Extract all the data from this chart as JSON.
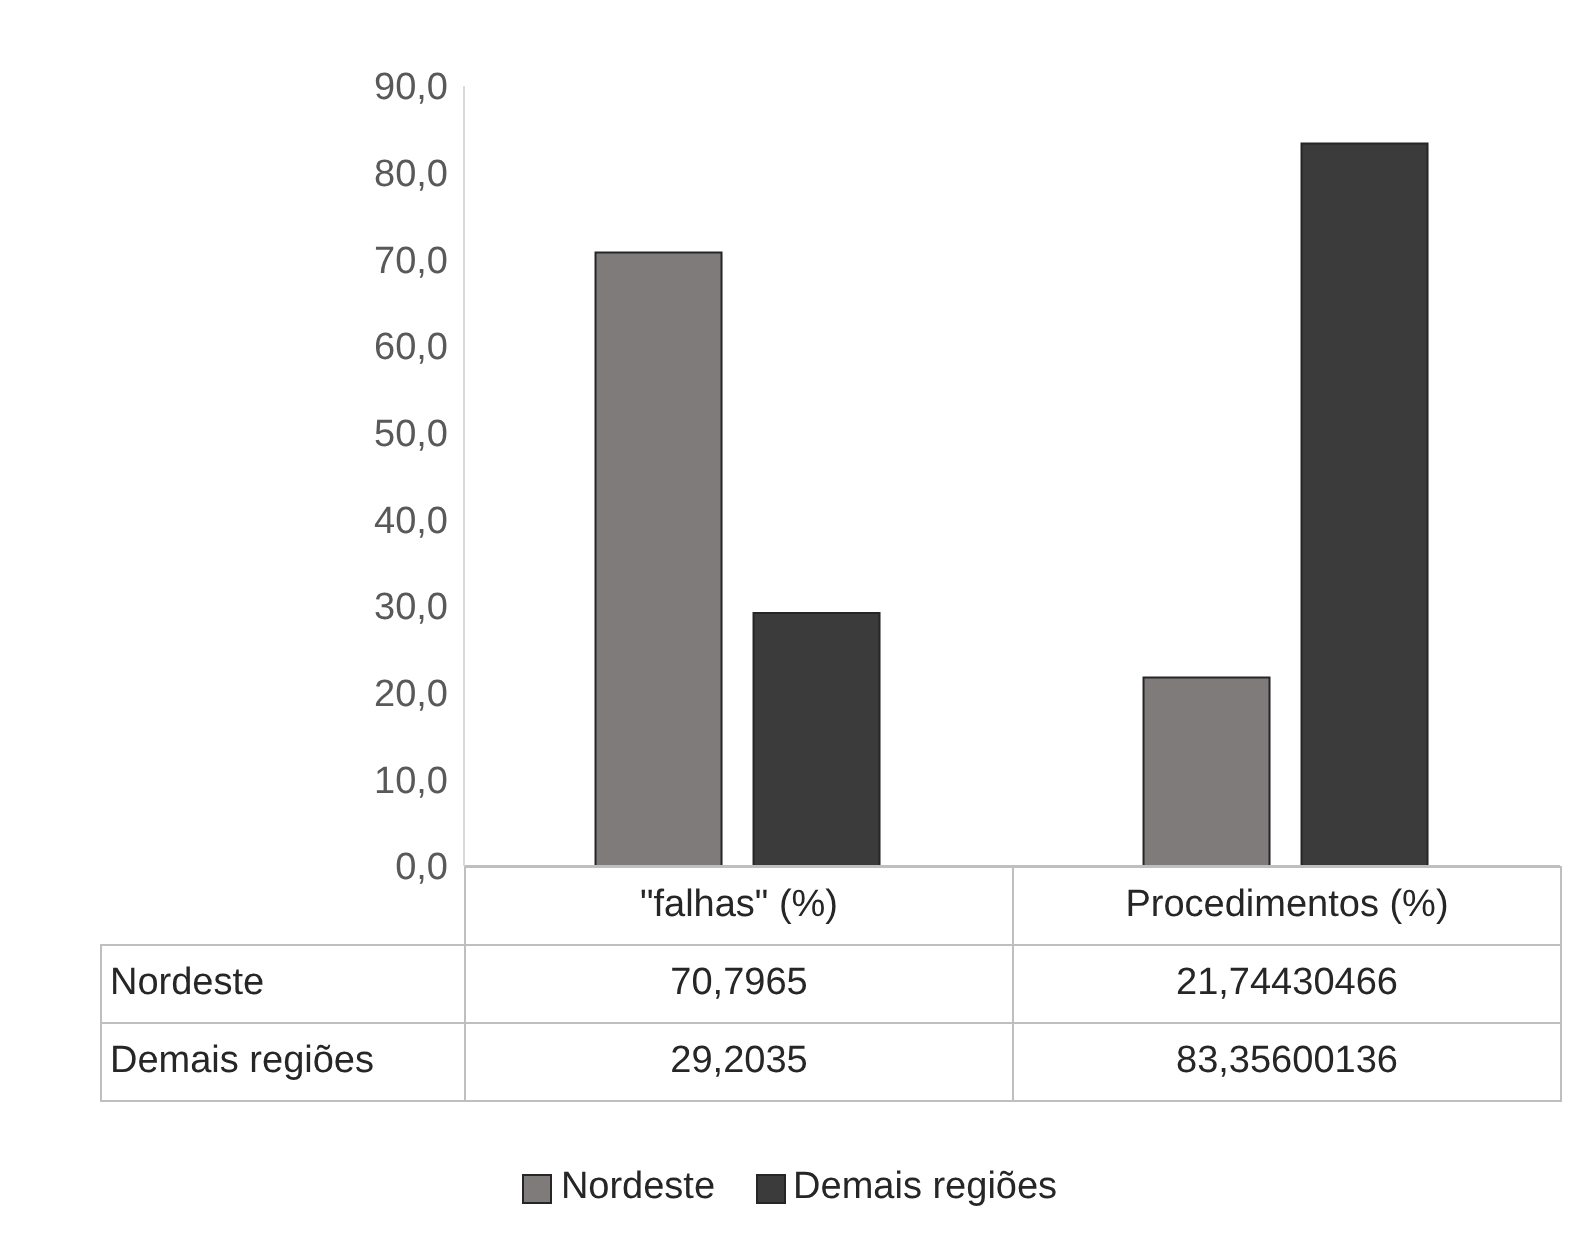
{
  "chart_data": {
    "type": "bar",
    "categories": [
      "\"falhas\" (%)",
      "Procedimentos (%)"
    ],
    "series": [
      {
        "name": "Nordeste",
        "color": "#7f7b7b",
        "values": [
          70.7965,
          21.74430466
        ],
        "value_labels": [
          "70,7965",
          "21,74430466"
        ]
      },
      {
        "name": "Demais regiões",
        "color": "#3b3b3b",
        "values": [
          29.2035,
          83.35600136
        ],
        "value_labels": [
          "29,2035",
          "83,35600136"
        ]
      }
    ],
    "ylim": [
      0,
      90
    ],
    "yticks": [
      {
        "value": 0,
        "label": "0,0"
      },
      {
        "value": 10,
        "label": "10,0"
      },
      {
        "value": 20,
        "label": "20,0"
      },
      {
        "value": 30,
        "label": "30,0"
      },
      {
        "value": 40,
        "label": "40,0"
      },
      {
        "value": 50,
        "label": "50,0"
      },
      {
        "value": 60,
        "label": "60,0"
      },
      {
        "value": 70,
        "label": "70,0"
      },
      {
        "value": 80,
        "label": "80,0"
      },
      {
        "value": 90,
        "label": "90,0"
      }
    ],
    "grid": false,
    "legend": "bottom"
  }
}
